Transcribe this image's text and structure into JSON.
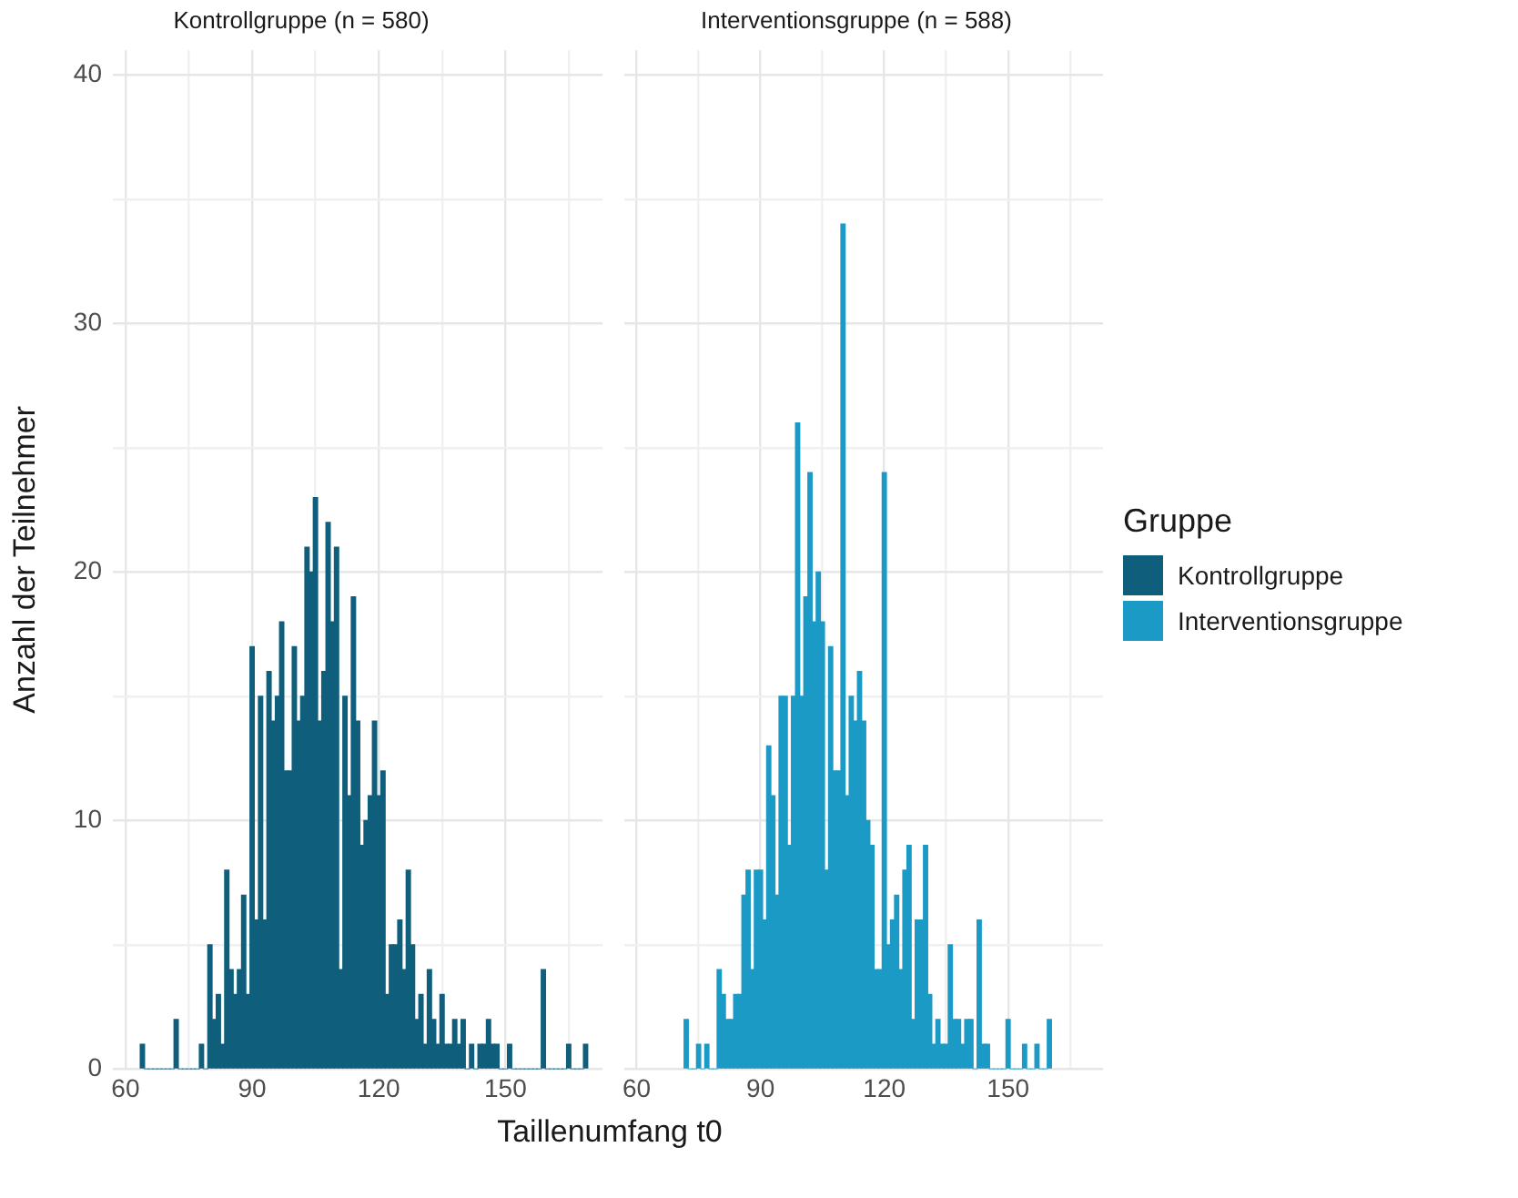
{
  "chart_data": [
    {
      "type": "histogram",
      "title": "Kontrollgruppe (n = 580)",
      "xlabel": "Taillenumfang t0",
      "ylabel": "Anzahl der Teilnehmer",
      "legend_title": "Gruppe",
      "legend": "right",
      "grid": true,
      "bins": [
        63.5,
        64.5,
        65.5,
        66.5,
        67.5,
        68.5,
        69.5,
        70.5,
        71.5,
        72.5,
        73.5,
        74.5,
        75.5,
        76.5,
        77.5,
        78.5,
        79.5,
        80.5,
        81.5,
        82.5,
        83.5,
        84.5,
        85.5,
        86.5,
        87.5,
        88.5,
        89.5,
        90.5,
        91.5,
        92.5,
        93.5,
        94.5,
        95.5,
        96.5,
        97.5,
        98.5,
        99.5,
        100.5,
        101.5,
        102.5,
        103.5,
        104.5,
        105.5,
        106.5,
        107.5,
        108.5,
        109.5,
        110.5,
        111.5,
        112.5,
        113.5,
        114.5,
        115.5,
        116.5,
        117.5,
        118.5,
        119.5,
        120.5,
        121.5,
        122.5,
        123.5,
        124.5,
        125.5,
        126.5,
        127.5,
        128.5,
        129.5,
        130.5,
        131.5,
        132.5,
        133.5,
        134.5,
        135.5,
        136.5,
        137.5,
        138.5,
        139.5,
        140.5,
        141.5,
        142.5,
        143.5,
        144.5,
        145.5,
        146.5,
        147.5,
        148.5,
        149.5,
        150.5,
        151.5,
        152.5,
        153.5,
        154.5,
        155.5,
        156.5,
        157.5,
        158.5,
        159.5,
        160.5,
        161.5,
        162.5,
        163.5,
        164.5,
        165.5,
        166.5,
        167.5,
        168.5,
        169.5
      ],
      "series": [
        {
          "name": "Kontrollgruppe",
          "color": "#0f5f7c",
          "values": [
            1,
            0,
            0,
            0,
            0,
            0,
            0,
            0,
            2,
            0,
            0,
            0,
            0,
            0,
            1,
            0,
            5,
            2,
            3,
            1,
            8,
            4,
            3,
            4,
            7,
            3,
            17,
            6,
            15,
            6,
            16,
            14,
            15,
            18,
            12,
            12,
            17,
            14,
            15,
            21,
            20,
            23,
            14,
            16,
            22,
            18,
            21,
            4,
            15,
            11,
            19,
            14,
            9,
            10,
            11,
            14,
            11,
            12,
            3,
            5,
            5,
            6,
            4,
            8,
            5,
            2,
            3,
            1,
            4,
            2,
            1,
            3,
            1,
            1,
            2,
            1,
            2,
            0,
            1,
            0,
            1,
            1,
            2,
            1,
            1,
            0,
            0,
            1,
            0,
            0,
            0,
            0,
            0,
            0,
            0,
            4,
            0,
            0,
            0,
            0,
            0,
            1,
            0,
            0,
            0,
            1
          ]
        }
      ],
      "xlim": [
        57,
        173
      ],
      "xticks": [
        60,
        {
          "value": 75,
          "label": null
        },
        90,
        {
          "value": 105,
          "label": null
        },
        120,
        {
          "value": 135,
          "label": null
        },
        150,
        {
          "value": 165,
          "label": null
        }
      ],
      "ylim": [
        0,
        41
      ],
      "yticks": [
        0,
        {
          "value": 5,
          "label": null
        },
        10,
        {
          "value": 15,
          "label": null
        },
        20,
        {
          "value": 25,
          "label": null
        },
        30,
        {
          "value": 35,
          "label": null
        },
        40
      ]
    },
    {
      "type": "histogram",
      "title": "Interventionsgruppe (n = 588)",
      "grid": true,
      "tick_labels": "x",
      "bins": [
        71.5,
        72.5,
        73.5,
        74.5,
        75.5,
        76.5,
        77.5,
        78.5,
        79.5,
        80.5,
        81.5,
        82.5,
        83.5,
        84.5,
        85.5,
        86.5,
        87.5,
        88.5,
        89.5,
        90.5,
        91.5,
        92.5,
        93.5,
        94.5,
        95.5,
        96.5,
        97.5,
        98.5,
        99.5,
        100.5,
        101.5,
        102.5,
        103.5,
        104.5,
        105.5,
        106.5,
        107.5,
        108.5,
        109.5,
        110.5,
        111.5,
        112.5,
        113.5,
        114.5,
        115.5,
        116.5,
        117.5,
        118.5,
        119.5,
        120.5,
        121.5,
        122.5,
        123.5,
        124.5,
        125.5,
        126.5,
        127.5,
        128.5,
        129.5,
        130.5,
        131.5,
        132.5,
        133.5,
        134.5,
        135.5,
        136.5,
        137.5,
        138.5,
        139.5,
        140.5,
        141.5,
        142.5,
        143.5,
        144.5,
        145.5,
        146.5,
        147.5,
        148.5,
        149.5,
        150.5,
        151.5,
        152.5,
        153.5,
        154.5,
        155.5,
        156.5,
        157.5,
        158.5,
        159.5,
        160.5
      ],
      "series": [
        {
          "name": "Interventionsgruppe",
          "color": "#1b9ac6",
          "values": [
            2,
            0,
            0,
            1,
            0,
            1,
            0,
            0,
            4,
            3,
            2,
            2,
            3,
            3,
            7,
            8,
            4,
            8,
            8,
            6,
            13,
            11,
            7,
            15,
            15,
            9,
            15,
            26,
            15,
            19,
            24,
            18,
            20,
            18,
            8,
            17,
            12,
            12,
            34,
            11,
            15,
            14,
            16,
            14,
            10,
            9,
            4,
            4,
            24,
            5,
            6,
            7,
            4,
            8,
            9,
            2,
            6,
            6,
            9,
            3,
            1,
            2,
            1,
            1,
            5,
            2,
            2,
            1,
            2,
            2,
            0,
            6,
            1,
            1,
            0,
            0,
            0,
            0,
            2,
            0,
            0,
            0,
            1,
            0,
            0,
            1,
            0,
            0,
            2
          ]
        }
      ],
      "xlim": [
        57,
        173
      ],
      "xticks": [
        60,
        {
          "value": 75,
          "label": null
        },
        90,
        {
          "value": 105,
          "label": null
        },
        120,
        {
          "value": 135,
          "label": null
        },
        150,
        {
          "value": 165,
          "label": null
        }
      ],
      "ylim": [
        0,
        41
      ],
      "yticks": [
        0,
        {
          "value": 5,
          "label": null
        },
        10,
        {
          "value": 15,
          "label": null
        },
        20,
        {
          "value": 25,
          "label": null
        },
        30,
        {
          "value": 35,
          "label": null
        },
        40
      ]
    }
  ]
}
